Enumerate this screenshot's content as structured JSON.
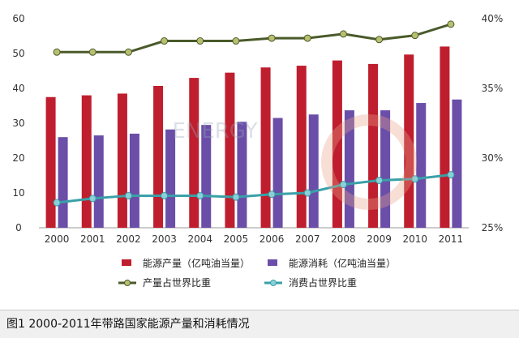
{
  "caption": "图1 2000-2011年带路国家能源产量和消耗情况",
  "watermark": {
    "text": "ENERGY"
  },
  "chart_data": {
    "type": "bar",
    "title": "",
    "categories": [
      "2000",
      "2001",
      "2002",
      "2003",
      "2004",
      "2005",
      "2006",
      "2007",
      "2008",
      "2009",
      "2010",
      "2011"
    ],
    "left_axis": {
      "ylim": [
        0,
        60
      ],
      "ticks": [
        "0",
        "10",
        "20",
        "30",
        "40",
        "50",
        "60"
      ]
    },
    "right_axis": {
      "ylim": [
        25,
        40
      ],
      "ticks": [
        "25%",
        "30%",
        "35%",
        "40%"
      ]
    },
    "grid": false,
    "legend_position": "bottom",
    "series": [
      {
        "name": "能源产量（亿吨油当量）",
        "type": "bar",
        "axis": "left",
        "color": "#bf1e2e",
        "values": [
          37.5,
          38.0,
          38.5,
          40.7,
          43.0,
          44.5,
          46.0,
          46.5,
          48.0,
          47.0,
          49.7,
          52.0
        ]
      },
      {
        "name": "能源消耗（亿吨油当量）",
        "type": "bar",
        "axis": "left",
        "color": "#6a4ea8",
        "values": [
          26.0,
          26.5,
          27.0,
          28.2,
          29.5,
          30.4,
          31.5,
          32.5,
          33.7,
          33.7,
          35.8,
          36.8
        ]
      },
      {
        "name": "产量占世界比重",
        "type": "line",
        "axis": "right",
        "color": "#4a5a2a",
        "marker_color": "#b8c070",
        "values": [
          37.6,
          37.6,
          37.6,
          38.4,
          38.4,
          38.4,
          38.6,
          38.6,
          38.9,
          38.5,
          38.8,
          39.6
        ]
      },
      {
        "name": "消费占世界比重",
        "type": "line",
        "axis": "right",
        "color": "#3aa0a8",
        "marker_color": "#8ad0d8",
        "values": [
          26.8,
          27.1,
          27.3,
          27.3,
          27.3,
          27.2,
          27.4,
          27.5,
          28.1,
          28.4,
          28.5,
          28.8
        ]
      }
    ]
  }
}
